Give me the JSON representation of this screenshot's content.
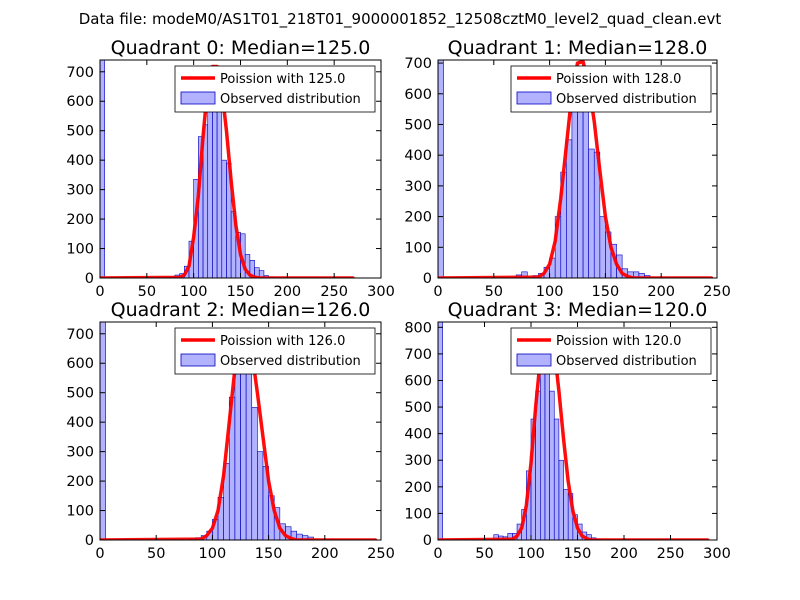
{
  "suptitle": "Data file: modeM0/AS1T01_218T01_9000001852_12508cztM0_level2_quad_clean.evt",
  "colors": {
    "bar_fill": "#7f7fff",
    "bar_fill_opacity": 0.6,
    "bar_edge": "#0000bf",
    "poisson_line": "#ff0000",
    "axis": "#000000"
  },
  "chart_data": [
    {
      "type": "bar",
      "title": "Quadrant 0: Median=125.0",
      "median": 125.0,
      "legend": {
        "line_label": "Poission with 125.0",
        "bar_label": "Observed distribution",
        "position": "upper right"
      },
      "xlim": [
        0,
        300
      ],
      "ylim": [
        0,
        740
      ],
      "xticks": [
        0,
        50,
        100,
        150,
        200,
        250,
        300
      ],
      "yticks": [
        0,
        100,
        200,
        300,
        400,
        500,
        600,
        700
      ],
      "bin_width": 5,
      "bins": [
        {
          "x": 0,
          "count": 740
        },
        {
          "x": 70,
          "count": 2
        },
        {
          "x": 75,
          "count": 5
        },
        {
          "x": 80,
          "count": 10
        },
        {
          "x": 85,
          "count": 15
        },
        {
          "x": 90,
          "count": 40
        },
        {
          "x": 95,
          "count": 125
        },
        {
          "x": 100,
          "count": 335
        },
        {
          "x": 105,
          "count": 480
        },
        {
          "x": 110,
          "count": 520
        },
        {
          "x": 115,
          "count": 600
        },
        {
          "x": 120,
          "count": 690
        },
        {
          "x": 125,
          "count": 625
        },
        {
          "x": 130,
          "count": 400
        },
        {
          "x": 135,
          "count": 390
        },
        {
          "x": 140,
          "count": 225
        },
        {
          "x": 145,
          "count": 155
        },
        {
          "x": 150,
          "count": 150
        },
        {
          "x": 155,
          "count": 80
        },
        {
          "x": 160,
          "count": 60
        },
        {
          "x": 165,
          "count": 35
        },
        {
          "x": 170,
          "count": 25
        },
        {
          "x": 175,
          "count": 8
        },
        {
          "x": 180,
          "count": 4
        }
      ],
      "poisson_curve": {
        "x": [
          0,
          85,
          90,
          95,
          100,
          105,
          110,
          115,
          120,
          125,
          130,
          135,
          140,
          145,
          150,
          155,
          160,
          165,
          170,
          270
        ],
        "y": [
          0,
          2,
          10,
          40,
          140,
          280,
          480,
          650,
          718,
          718,
          640,
          500,
          330,
          180,
          80,
          30,
          10,
          3,
          0,
          0
        ]
      }
    },
    {
      "type": "bar",
      "title": "Quadrant 1: Median=128.0",
      "median": 128.0,
      "legend": {
        "line_label": "Poission with 128.0",
        "bar_label": "Observed distribution",
        "position": "upper right"
      },
      "xlim": [
        0,
        250
      ],
      "ylim": [
        0,
        710
      ],
      "xticks": [
        0,
        50,
        100,
        150,
        200,
        250
      ],
      "yticks": [
        0,
        100,
        200,
        300,
        400,
        500,
        600,
        700
      ],
      "bin_width": 5,
      "bins": [
        {
          "x": 0,
          "count": 710
        },
        {
          "x": 70,
          "count": 10
        },
        {
          "x": 75,
          "count": 20
        },
        {
          "x": 85,
          "count": 8
        },
        {
          "x": 90,
          "count": 15
        },
        {
          "x": 95,
          "count": 35
        },
        {
          "x": 100,
          "count": 65
        },
        {
          "x": 105,
          "count": 200
        },
        {
          "x": 110,
          "count": 345
        },
        {
          "x": 115,
          "count": 450
        },
        {
          "x": 120,
          "count": 560
        },
        {
          "x": 125,
          "count": 640
        },
        {
          "x": 130,
          "count": 600
        },
        {
          "x": 135,
          "count": 420
        },
        {
          "x": 140,
          "count": 410
        },
        {
          "x": 145,
          "count": 200
        },
        {
          "x": 150,
          "count": 150
        },
        {
          "x": 155,
          "count": 110
        },
        {
          "x": 160,
          "count": 75
        },
        {
          "x": 165,
          "count": 30
        },
        {
          "x": 170,
          "count": 20
        },
        {
          "x": 175,
          "count": 20
        },
        {
          "x": 180,
          "count": 15
        },
        {
          "x": 185,
          "count": 8
        }
      ],
      "poisson_curve": {
        "x": [
          0,
          90,
          95,
          100,
          105,
          110,
          115,
          120,
          125,
          130,
          135,
          140,
          145,
          150,
          155,
          160,
          165,
          170,
          175,
          245
        ],
        "y": [
          0,
          3,
          15,
          45,
          120,
          260,
          430,
          600,
          700,
          705,
          630,
          510,
          350,
          200,
          100,
          45,
          15,
          5,
          0,
          0
        ]
      }
    },
    {
      "type": "bar",
      "title": "Quadrant 2: Median=126.0",
      "median": 126.0,
      "legend": {
        "line_label": "Poission with 126.0",
        "bar_label": "Observed distribution",
        "position": "upper right"
      },
      "xlim": [
        0,
        250
      ],
      "ylim": [
        0,
        740
      ],
      "xticks": [
        0,
        50,
        100,
        150,
        200,
        250
      ],
      "yticks": [
        0,
        100,
        200,
        300,
        400,
        500,
        600,
        700
      ],
      "bin_width": 5,
      "bins": [
        {
          "x": 0,
          "count": 740
        },
        {
          "x": 80,
          "count": 5
        },
        {
          "x": 85,
          "count": 8
        },
        {
          "x": 90,
          "count": 15
        },
        {
          "x": 95,
          "count": 30
        },
        {
          "x": 100,
          "count": 70
        },
        {
          "x": 105,
          "count": 145
        },
        {
          "x": 110,
          "count": 260
        },
        {
          "x": 115,
          "count": 485
        },
        {
          "x": 120,
          "count": 580
        },
        {
          "x": 125,
          "count": 680
        },
        {
          "x": 130,
          "count": 660
        },
        {
          "x": 135,
          "count": 450
        },
        {
          "x": 140,
          "count": 300
        },
        {
          "x": 145,
          "count": 250
        },
        {
          "x": 150,
          "count": 150
        },
        {
          "x": 155,
          "count": 110
        },
        {
          "x": 160,
          "count": 55
        },
        {
          "x": 165,
          "count": 45
        },
        {
          "x": 170,
          "count": 30
        },
        {
          "x": 175,
          "count": 20
        },
        {
          "x": 180,
          "count": 15
        },
        {
          "x": 185,
          "count": 10
        }
      ],
      "poisson_curve": {
        "x": [
          0,
          90,
          95,
          100,
          105,
          110,
          115,
          120,
          125,
          130,
          135,
          140,
          145,
          150,
          155,
          160,
          165,
          170,
          175,
          245
        ],
        "y": [
          0,
          3,
          15,
          40,
          100,
          220,
          400,
          580,
          690,
          710,
          640,
          500,
          350,
          200,
          100,
          40,
          15,
          5,
          0,
          0
        ]
      }
    },
    {
      "type": "bar",
      "title": "Quadrant 3: Median=120.0",
      "median": 120.0,
      "legend": {
        "line_label": "Poission with 120.0",
        "bar_label": "Observed distribution",
        "position": "upper right"
      },
      "xlim": [
        0,
        300
      ],
      "ylim": [
        0,
        820
      ],
      "xticks": [
        0,
        50,
        100,
        150,
        200,
        250,
        300
      ],
      "yticks": [
        0,
        100,
        200,
        300,
        400,
        500,
        600,
        700,
        800
      ],
      "bin_width": 5,
      "bins": [
        {
          "x": 0,
          "count": 820
        },
        {
          "x": 60,
          "count": 20
        },
        {
          "x": 65,
          "count": 15
        },
        {
          "x": 70,
          "count": 12
        },
        {
          "x": 75,
          "count": 25
        },
        {
          "x": 80,
          "count": 25
        },
        {
          "x": 85,
          "count": 60
        },
        {
          "x": 90,
          "count": 115
        },
        {
          "x": 95,
          "count": 260
        },
        {
          "x": 100,
          "count": 455
        },
        {
          "x": 105,
          "count": 560
        },
        {
          "x": 110,
          "count": 700
        },
        {
          "x": 115,
          "count": 690
        },
        {
          "x": 120,
          "count": 560
        },
        {
          "x": 125,
          "count": 455
        },
        {
          "x": 130,
          "count": 300
        },
        {
          "x": 135,
          "count": 190
        },
        {
          "x": 140,
          "count": 175
        },
        {
          "x": 145,
          "count": 95
        },
        {
          "x": 150,
          "count": 60
        },
        {
          "x": 155,
          "count": 30
        },
        {
          "x": 160,
          "count": 20
        },
        {
          "x": 165,
          "count": 8
        },
        {
          "x": 170,
          "count": 4
        }
      ],
      "poisson_curve": {
        "x": [
          0,
          80,
          85,
          90,
          95,
          100,
          105,
          110,
          115,
          120,
          125,
          130,
          135,
          140,
          145,
          150,
          155,
          160,
          165,
          290
        ],
        "y": [
          0,
          3,
          15,
          45,
          130,
          290,
          500,
          680,
          775,
          780,
          720,
          560,
          380,
          220,
          110,
          45,
          15,
          5,
          0,
          0
        ]
      }
    }
  ]
}
